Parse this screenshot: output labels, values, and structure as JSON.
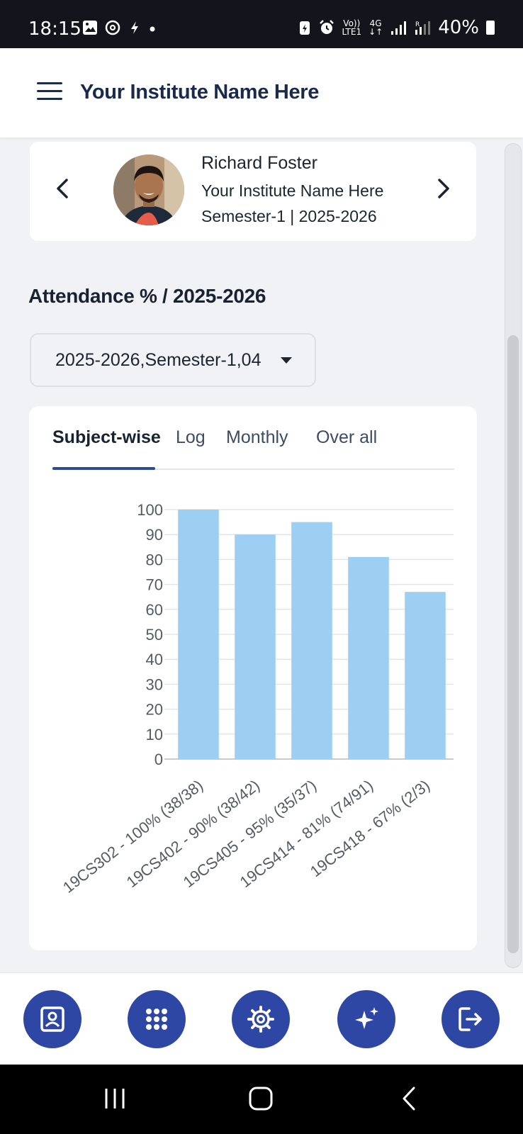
{
  "status_bar": {
    "time": "18:15",
    "volte": "Vo))",
    "lte": "LTE1",
    "network": "4G",
    "battery": "40%"
  },
  "app_bar": {
    "title": "Your Institute Name Here"
  },
  "profile": {
    "name": "Richard Foster",
    "institute": "Your Institute Name Here",
    "semester": "Semester-1 | 2025-2026"
  },
  "attendance": {
    "title": "Attendance % / 2025-2026",
    "selector_value": "2025-2026,Semester-1,04"
  },
  "tabs": [
    {
      "label": "Subject-wise",
      "active": true
    },
    {
      "label": "Log",
      "active": false
    },
    {
      "label": "Monthly",
      "active": false
    },
    {
      "label": "Over all",
      "active": false
    }
  ],
  "chart_data": {
    "type": "bar",
    "title": "",
    "xlabel": "",
    "ylabel": "",
    "categories": [
      "19CS302 - 100% (38/38)",
      "19CS402 - 90% (38/42)",
      "19CS405 - 95% (35/37)",
      "19CS414 - 81% (74/91)",
      "19CS418 - 67% (2/3)"
    ],
    "values": [
      100,
      90,
      95,
      81,
      67
    ],
    "ylim": [
      0,
      100
    ],
    "yticks": [
      0,
      10,
      20,
      30,
      40,
      50,
      60,
      70,
      80,
      90,
      100
    ],
    "grid": true,
    "bar_color": "#9dcff3"
  },
  "bottom_nav": [
    {
      "icon": "profile-icon"
    },
    {
      "icon": "apps-grid-icon"
    },
    {
      "icon": "settings-gear-icon"
    },
    {
      "icon": "sparkles-icon"
    },
    {
      "icon": "logout-icon"
    }
  ],
  "colors": {
    "primary": "#2e47a5",
    "tab_indicator": "#2d4a9a",
    "bar": "#9dcff3",
    "background": "#f0f2f5"
  }
}
